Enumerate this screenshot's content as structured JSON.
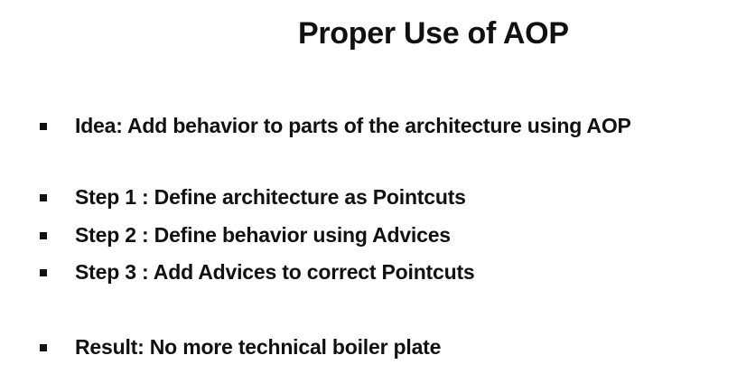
{
  "slide": {
    "title": "Proper Use of AOP",
    "bullets": [
      "Idea: Add behavior to parts of the architecture using AOP",
      "Step 1 : Define architecture as Pointcuts",
      "Step 2 : Define behavior using Advices",
      "Step 3 : Add Advices to correct Pointcuts",
      "Result: No more technical boiler plate"
    ]
  }
}
